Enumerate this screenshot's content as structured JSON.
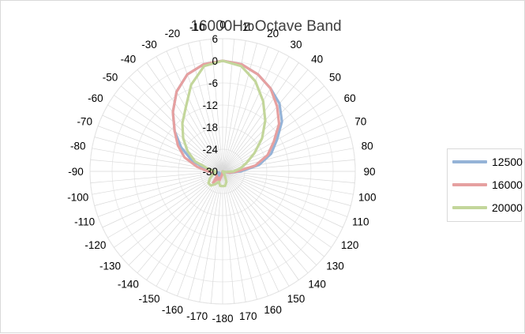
{
  "chart_data": {
    "type": "radar",
    "title": "16000Hz Octave Band",
    "angle_ticks": [
      0,
      10,
      20,
      30,
      40,
      50,
      60,
      70,
      80,
      90,
      100,
      110,
      120,
      130,
      140,
      150,
      160,
      170,
      -180,
      -170,
      -160,
      -150,
      -140,
      -130,
      -120,
      -110,
      -100,
      -90,
      -80,
      -70,
      -60,
      -50,
      -40,
      -30,
      -20,
      -10
    ],
    "radial_ticks": [
      -30,
      -24,
      -18,
      -12,
      -6,
      0,
      6
    ],
    "rlim": [
      -30,
      6
    ],
    "legend_position": "right",
    "series": [
      {
        "name": "12500",
        "color": "#95b3d7",
        "points": [
          [
            0,
            0
          ],
          [
            10,
            -0.5
          ],
          [
            20,
            -2
          ],
          [
            30,
            -4
          ],
          [
            40,
            -6
          ],
          [
            50,
            -9
          ],
          [
            60,
            -13
          ],
          [
            70,
            -16
          ],
          [
            80,
            -20
          ],
          [
            90,
            -25
          ],
          [
            100,
            -28
          ],
          [
            110,
            -29.5
          ],
          [
            120,
            -30
          ],
          [
            130,
            -30
          ],
          [
            140,
            -30
          ],
          [
            150,
            -30
          ],
          [
            160,
            -30
          ],
          [
            170,
            -30
          ],
          [
            180,
            -30
          ],
          [
            -170,
            -30
          ],
          [
            -160,
            -29
          ],
          [
            -150,
            -28
          ],
          [
            -140,
            -27
          ],
          [
            -130,
            -28
          ],
          [
            -120,
            -29
          ],
          [
            -110,
            -29
          ],
          [
            -100,
            -28
          ],
          [
            -90,
            -27
          ],
          [
            -80,
            -25
          ],
          [
            -70,
            -21
          ],
          [
            -60,
            -17
          ],
          [
            -50,
            -13
          ],
          [
            -40,
            -9
          ],
          [
            -30,
            -5
          ],
          [
            -20,
            -2
          ],
          [
            -10,
            -0.5
          ]
        ]
      },
      {
        "name": "16000",
        "color": "#e6a0a0",
        "points": [
          [
            0,
            0
          ],
          [
            10,
            -0.5
          ],
          [
            20,
            -2
          ],
          [
            30,
            -4
          ],
          [
            40,
            -7
          ],
          [
            50,
            -10
          ],
          [
            60,
            -14
          ],
          [
            70,
            -17
          ],
          [
            80,
            -21
          ],
          [
            90,
            -26
          ],
          [
            100,
            -28
          ],
          [
            110,
            -29.5
          ],
          [
            120,
            -30
          ],
          [
            130,
            -30
          ],
          [
            140,
            -30
          ],
          [
            150,
            -30
          ],
          [
            160,
            -30
          ],
          [
            170,
            -30
          ],
          [
            180,
            -30
          ],
          [
            -170,
            -29
          ],
          [
            -160,
            -27
          ],
          [
            -150,
            -28
          ],
          [
            -140,
            -26
          ],
          [
            -130,
            -28
          ],
          [
            -120,
            -28
          ],
          [
            -110,
            -28
          ],
          [
            -100,
            -28
          ],
          [
            -90,
            -26
          ],
          [
            -80,
            -23
          ],
          [
            -70,
            -19
          ],
          [
            -60,
            -16
          ],
          [
            -50,
            -13
          ],
          [
            -40,
            -9
          ],
          [
            -30,
            -5
          ],
          [
            -20,
            -2
          ],
          [
            -10,
            -0.5
          ]
        ]
      },
      {
        "name": "20000",
        "color": "#c3d69b",
        "points": [
          [
            0,
            0
          ],
          [
            10,
            -1
          ],
          [
            20,
            -4
          ],
          [
            30,
            -8
          ],
          [
            40,
            -12
          ],
          [
            50,
            -16
          ],
          [
            60,
            -20
          ],
          [
            70,
            -23
          ],
          [
            80,
            -25
          ],
          [
            90,
            -27
          ],
          [
            100,
            -29
          ],
          [
            110,
            -29.5
          ],
          [
            120,
            -30
          ],
          [
            130,
            -30
          ],
          [
            140,
            -30
          ],
          [
            150,
            -29
          ],
          [
            160,
            -27
          ],
          [
            170,
            -26
          ],
          [
            180,
            -26
          ],
          [
            -170,
            -26
          ],
          [
            -160,
            -27
          ],
          [
            -150,
            -26
          ],
          [
            -140,
            -25
          ],
          [
            -130,
            -25
          ],
          [
            -120,
            -26
          ],
          [
            -110,
            -27
          ],
          [
            -100,
            -28
          ],
          [
            -90,
            -28
          ],
          [
            -80,
            -26
          ],
          [
            -70,
            -22
          ],
          [
            -60,
            -19
          ],
          [
            -50,
            -16
          ],
          [
            -40,
            -13
          ],
          [
            -30,
            -10
          ],
          [
            -20,
            -5
          ],
          [
            -10,
            -1
          ]
        ]
      }
    ]
  }
}
